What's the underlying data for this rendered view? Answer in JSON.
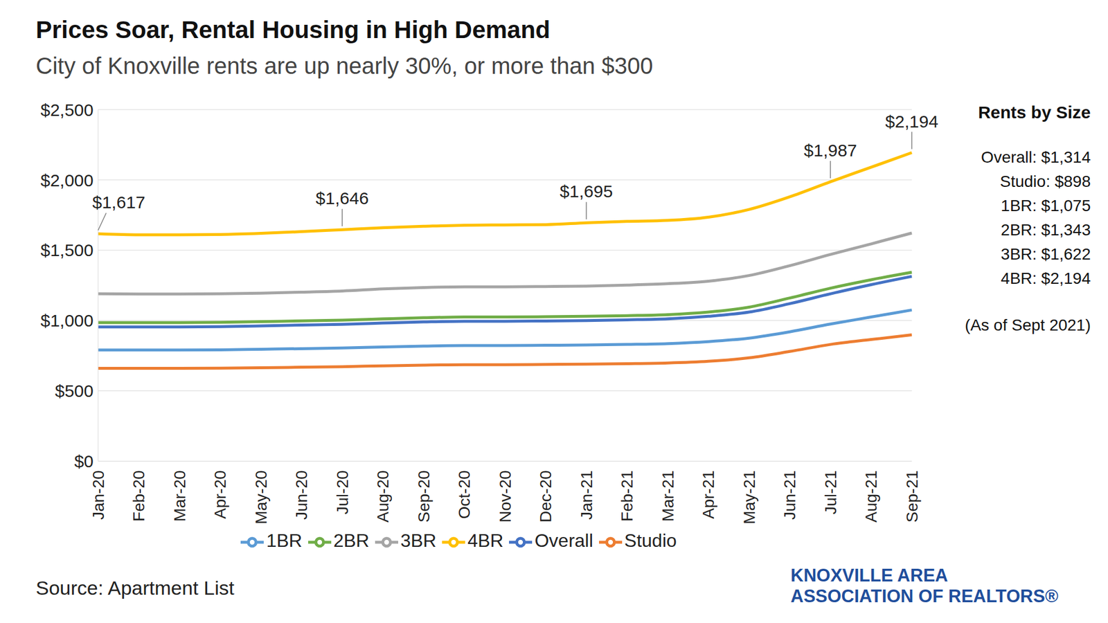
{
  "chart_data": {
    "type": "line",
    "title": "Prices Soar, Rental Housing in High Demand",
    "subtitle": "City of Knoxville rents are up nearly 30%, or more than $300",
    "categories": [
      "Jan-20",
      "Feb-20",
      "Mar-20",
      "Apr-20",
      "May-20",
      "Jun-20",
      "Jul-20",
      "Aug-20",
      "Sep-20",
      "Oct-20",
      "Nov-20",
      "Dec-20",
      "Jan-21",
      "Feb-21",
      "Mar-21",
      "Apr-21",
      "May-21",
      "Jun-21",
      "Jul-21",
      "Aug-21",
      "Sep-21"
    ],
    "series": [
      {
        "name": "Overall",
        "color": "#4472c4",
        "values": [
          955,
          955,
          955,
          957,
          962,
          968,
          973,
          982,
          990,
          995,
          995,
          997,
          1000,
          1005,
          1012,
          1030,
          1060,
          1120,
          1190,
          1255,
          1314
        ]
      },
      {
        "name": "Studio",
        "color": "#ed7d31",
        "values": [
          660,
          660,
          660,
          661,
          664,
          668,
          672,
          678,
          683,
          686,
          686,
          688,
          690,
          693,
          698,
          710,
          735,
          780,
          830,
          865,
          898
        ]
      },
      {
        "name": "1BR",
        "color": "#5b9bd5",
        "values": [
          790,
          790,
          790,
          792,
          796,
          800,
          805,
          812,
          818,
          822,
          822,
          824,
          826,
          830,
          836,
          850,
          875,
          920,
          975,
          1025,
          1075
        ]
      },
      {
        "name": "2BR",
        "color": "#70ad47",
        "values": [
          985,
          985,
          985,
          987,
          992,
          998,
          1003,
          1012,
          1020,
          1025,
          1025,
          1027,
          1030,
          1035,
          1042,
          1060,
          1095,
          1160,
          1230,
          1290,
          1343
        ]
      },
      {
        "name": "3BR",
        "color": "#a5a5a5",
        "values": [
          1190,
          1188,
          1188,
          1190,
          1195,
          1202,
          1210,
          1225,
          1235,
          1240,
          1240,
          1242,
          1245,
          1252,
          1262,
          1280,
          1320,
          1390,
          1470,
          1545,
          1622
        ]
      },
      {
        "name": "4BR",
        "color": "#ffc000",
        "values": [
          1617,
          1610,
          1610,
          1612,
          1620,
          1632,
          1646,
          1660,
          1670,
          1678,
          1680,
          1682,
          1695,
          1705,
          1712,
          1735,
          1790,
          1880,
          1987,
          2090,
          2194
        ],
        "value_labels": [
          "$1,617",
          null,
          null,
          null,
          null,
          null,
          "$1,646",
          null,
          null,
          null,
          null,
          null,
          "$1,695",
          null,
          null,
          null,
          null,
          null,
          "$1,987",
          null,
          "$2,194"
        ]
      }
    ],
    "ylim": [
      0,
      2500
    ],
    "yticks": [
      {
        "value": 0,
        "label": "$0"
      },
      {
        "value": 500,
        "label": "$500"
      },
      {
        "value": 1000,
        "label": "$1,000"
      },
      {
        "value": 1500,
        "label": "$1,500"
      },
      {
        "value": 2000,
        "label": "$2,000"
      },
      {
        "value": 2500,
        "label": "$2,500"
      }
    ],
    "grid": true,
    "legend": "bottom",
    "line_style": "smooth",
    "marker": "none",
    "side_panel": {
      "title": "Rents by Size",
      "items": [
        "Overall: $1,314",
        "Studio: $898",
        "1BR: $1,075",
        "2BR: $1,343",
        "3BR: $1,622",
        "4BR: $2,194"
      ],
      "note": "(As of Sept 2021)"
    },
    "source": "Source: Apartment List",
    "brand": [
      "KNOXVILLE AREA",
      "ASSOCIATION OF REALTORS®"
    ]
  }
}
